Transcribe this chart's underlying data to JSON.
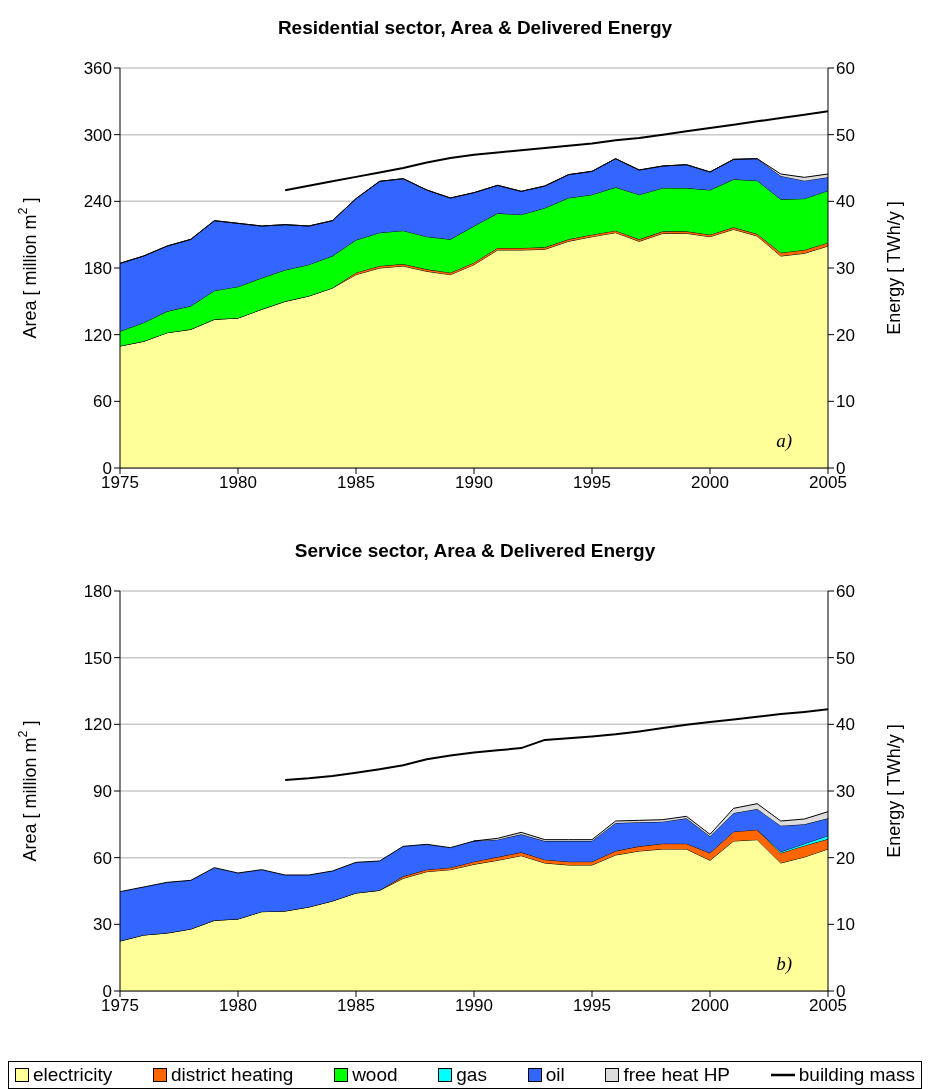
{
  "chart_data": [
    {
      "type": "area",
      "title": "Residential sector, Area & Delivered Energy",
      "ylabel": "Area [ million m$^{2}$ ]",
      "y2label": "Energy [ TWh/y ]",
      "annotations": [
        "a)"
      ],
      "x": [
        1975,
        1976,
        1977,
        1978,
        1979,
        1980,
        1981,
        1982,
        1983,
        1984,
        1985,
        1986,
        1987,
        1988,
        1989,
        1990,
        1991,
        1992,
        1993,
        1994,
        1995,
        1996,
        1997,
        1998,
        1999,
        2000,
        2001,
        2002,
        2003,
        2004,
        2005
      ],
      "stacked": true,
      "grid": "y",
      "xlim": [
        1975,
        2005
      ],
      "xticks": [
        1975,
        1980,
        1985,
        1990,
        1995,
        2000,
        2005
      ],
      "ylim": [
        0,
        360
      ],
      "yticks": [
        0,
        60,
        120,
        180,
        240,
        300,
        360
      ],
      "y2lim": [
        0,
        60
      ],
      "y2ticks": [
        0,
        10,
        20,
        30,
        40,
        50,
        60
      ],
      "series": [
        {
          "axis": "y2",
          "color": "#ffff99",
          "values": [
            18.3,
            19.0,
            20.3,
            20.8,
            22.3,
            22.5,
            23.8,
            25.0,
            25.8,
            27.0,
            29.0,
            30.0,
            30.3,
            29.5,
            29.0,
            30.5,
            32.7,
            32.7,
            32.8,
            34.0,
            34.7,
            35.3,
            34.0,
            35.2,
            35.2,
            34.7,
            35.8,
            34.8,
            31.8,
            32.2,
            33.3
          ]
        },
        {
          "axis": "y2",
          "color": "#ff6600",
          "values": [
            0,
            0,
            0,
            0,
            0,
            0,
            0,
            0,
            0,
            0,
            0.3,
            0.3,
            0.3,
            0.3,
            0.3,
            0.3,
            0.3,
            0.3,
            0.3,
            0.3,
            0.3,
            0.3,
            0.3,
            0.3,
            0.3,
            0.3,
            0.3,
            0.3,
            0.5,
            0.5,
            0.5
          ]
        },
        {
          "axis": "y2",
          "color": "#00ff00",
          "values": [
            2.2,
            2.8,
            3.2,
            3.5,
            4.3,
            4.7,
            4.7,
            4.7,
            4.7,
            4.8,
            4.9,
            5.0,
            5.0,
            4.9,
            5.0,
            5.5,
            5.2,
            5.0,
            5.9,
            6.2,
            6.0,
            6.5,
            6.7,
            6.5,
            6.5,
            6.7,
            7.2,
            8.0,
            8.0,
            7.7,
            7.8
          ]
        },
        {
          "axis": "y2",
          "color": "#3366ff",
          "values": [
            10.2,
            10.0,
            9.8,
            10.0,
            10.5,
            9.5,
            7.8,
            6.8,
            5.8,
            5.3,
            6.2,
            7.7,
            7.8,
            7.0,
            6.2,
            5.0,
            4.2,
            3.5,
            3.3,
            3.5,
            3.5,
            4.3,
            3.7,
            3.3,
            3.5,
            2.7,
            3.0,
            3.3,
            3.5,
            2.7,
            2.0
          ]
        },
        {
          "axis": "y2",
          "color": "#dddddd",
          "values": [
            0,
            0,
            0,
            0,
            0,
            0,
            0,
            0,
            0,
            0,
            0,
            0,
            0,
            0,
            0,
            0,
            0,
            0,
            0,
            0,
            0,
            0,
            0,
            0,
            0,
            0,
            0,
            0,
            0.3,
            0.5,
            0.5
          ]
        },
        {
          "type": "line",
          "axis": "y",
          "color": "#000000",
          "values": [
            null,
            null,
            null,
            null,
            null,
            null,
            null,
            250,
            254,
            258,
            262,
            266,
            270,
            275,
            279,
            282,
            284,
            286,
            288,
            290,
            292,
            295,
            297,
            300,
            303,
            306,
            309,
            312,
            315,
            318,
            321
          ]
        }
      ]
    },
    {
      "type": "area",
      "title": "Service sector, Area & Delivered Energy",
      "ylabel": "Area [ million m$^{2}$ ]",
      "y2label": "Energy [ TWh/y ]",
      "annotations": [
        "b)"
      ],
      "x": [
        1975,
        1976,
        1977,
        1978,
        1979,
        1980,
        1981,
        1982,
        1983,
        1984,
        1985,
        1986,
        1987,
        1988,
        1989,
        1990,
        1991,
        1992,
        1993,
        1994,
        1995,
        1996,
        1997,
        1998,
        1999,
        2000,
        2001,
        2002,
        2003,
        2004,
        2005
      ],
      "stacked": true,
      "grid": "y",
      "legend": "bottom",
      "xlim": [
        1975,
        2005
      ],
      "xticks": [
        1975,
        1980,
        1985,
        1990,
        1995,
        2000,
        2005
      ],
      "ylim": [
        0,
        180
      ],
      "yticks": [
        0,
        30,
        60,
        90,
        120,
        150,
        180
      ],
      "y2lim": [
        0,
        60
      ],
      "y2ticks": [
        0,
        10,
        20,
        30,
        40,
        50,
        60
      ],
      "series": [
        {
          "name": "electricity",
          "axis": "y2",
          "color": "#ffff99",
          "values": [
            7.5,
            8.4,
            8.7,
            9.3,
            10.6,
            10.8,
            11.9,
            12.0,
            12.6,
            13.5,
            14.7,
            15.1,
            16.9,
            17.9,
            18.2,
            19.0,
            19.6,
            20.3,
            19.2,
            18.9,
            18.9,
            20.4,
            21.0,
            21.3,
            21.3,
            19.6,
            22.5,
            22.7,
            19.2,
            20.1,
            21.3
          ]
        },
        {
          "name": "district heating",
          "axis": "y2",
          "color": "#ff6600",
          "values": [
            0,
            0,
            0,
            0,
            0,
            0,
            0,
            0,
            0,
            0,
            0,
            0,
            0.3,
            0.3,
            0.3,
            0.4,
            0.5,
            0.5,
            0.5,
            0.5,
            0.5,
            0.6,
            0.7,
            0.8,
            0.8,
            1.1,
            1.4,
            1.5,
            1.5,
            1.7,
            1.5
          ]
        },
        {
          "name": "wood",
          "axis": "y2",
          "color": "#00ff00",
          "values": [
            null,
            null,
            null,
            null,
            null,
            null,
            null,
            null,
            null,
            null,
            null,
            null,
            null,
            null,
            null,
            null,
            null,
            null,
            null,
            null,
            null,
            null,
            null,
            null,
            null,
            null,
            null,
            null,
            null,
            null,
            null
          ]
        },
        {
          "name": "gas",
          "axis": "y2",
          "color": "#00ffff",
          "values": [
            null,
            null,
            null,
            null,
            null,
            null,
            null,
            null,
            null,
            null,
            null,
            null,
            null,
            null,
            null,
            null,
            null,
            null,
            null,
            null,
            null,
            null,
            null,
            null,
            null,
            null,
            null,
            0,
            0.2,
            0.3,
            0.5
          ]
        },
        {
          "name": "oil",
          "axis": "y2",
          "color": "#3366ff",
          "values": [
            7.4,
            7.2,
            7.6,
            7.3,
            7.9,
            6.9,
            6.3,
            5.4,
            4.8,
            4.5,
            4.6,
            4.4,
            4.5,
            3.8,
            3.0,
            3.1,
            2.6,
            2.7,
            2.8,
            3.1,
            3.1,
            4.2,
            3.6,
            3.3,
            3.8,
            2.5,
            2.8,
            3.1,
            3.9,
            2.9,
            2.6
          ]
        },
        {
          "name": "free heat HP",
          "axis": "y2",
          "color": "#dddddd",
          "values": [
            null,
            null,
            null,
            null,
            null,
            null,
            null,
            null,
            null,
            null,
            null,
            null,
            null,
            null,
            null,
            0,
            0.2,
            0.3,
            0.2,
            0.2,
            0.2,
            0.3,
            0.3,
            0.3,
            0.3,
            0.3,
            0.7,
            0.8,
            0.7,
            0.8,
            1.0
          ]
        },
        {
          "name": "building mass",
          "type": "line",
          "axis": "y",
          "color": "#000000",
          "values": [
            null,
            null,
            null,
            null,
            null,
            null,
            null,
            95.0,
            95.7,
            96.8,
            98.2,
            99.8,
            101.6,
            104.3,
            106.0,
            107.3,
            108.3,
            109.3,
            113.0,
            113.7,
            114.5,
            115.5,
            116.8,
            118.3,
            119.8,
            121.0,
            122.2,
            123.4,
            124.6,
            125.6,
            126.8
          ]
        }
      ]
    }
  ]
}
